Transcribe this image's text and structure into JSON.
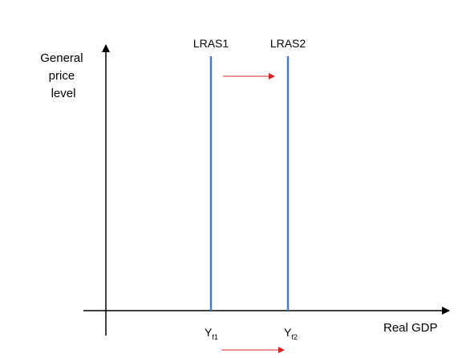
{
  "diagram": {
    "y_axis_label": [
      "General",
      "price",
      "level"
    ],
    "x_axis_label": "Real GDP",
    "curves": [
      {
        "name": "LRAS1",
        "color": "#4a78c2"
      },
      {
        "name": "LRAS2",
        "color": "#4a78c2"
      }
    ],
    "x_ticks": [
      {
        "base": "Y",
        "sub": "f1"
      },
      {
        "base": "Y",
        "sub": "f2"
      }
    ],
    "shift_arrow_color": "#e02020",
    "axis_color": "#000000"
  }
}
